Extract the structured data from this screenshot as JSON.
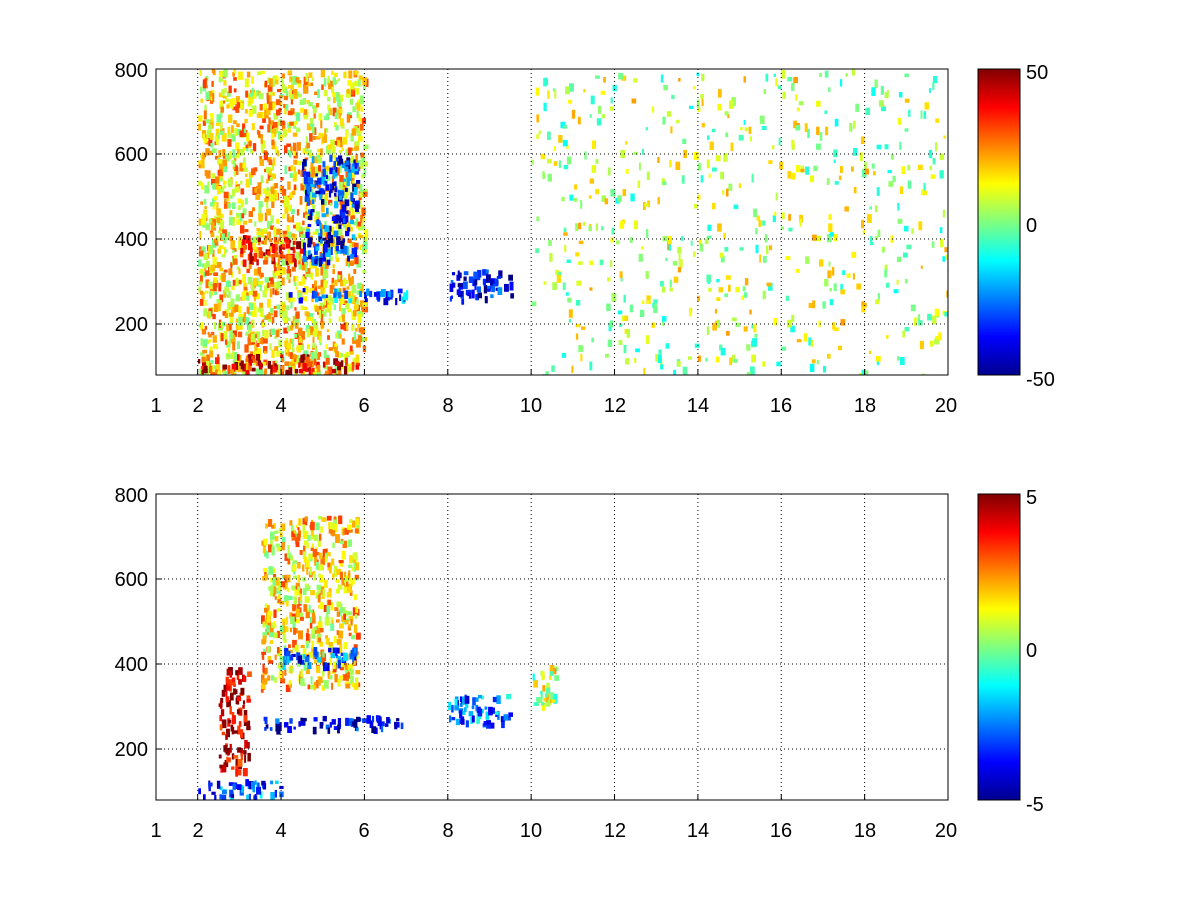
{
  "chart_data": [
    {
      "type": "heatmap",
      "title": "",
      "xlabel": "",
      "ylabel": "",
      "xlim": [
        1,
        20
      ],
      "ylim": [
        80,
        800
      ],
      "x_ticks": [
        1,
        2,
        4,
        6,
        8,
        10,
        12,
        14,
        16,
        18,
        20
      ],
      "y_ticks": [
        200,
        400,
        600,
        800
      ],
      "x_tick_labels": [
        "1",
        "2",
        "4",
        "6",
        "8",
        "10",
        "12",
        "14",
        "16",
        "18",
        "20"
      ],
      "y_tick_labels": [
        "200",
        "400",
        "600",
        "800"
      ],
      "grid": true,
      "colormap": "jet",
      "clim": [
        -50,
        50
      ],
      "colorbar_ticks": [
        -50,
        0,
        50
      ],
      "colorbar_tick_labels": [
        "-50",
        "0",
        "50"
      ],
      "features": [
        {
          "x_range": [
            2,
            6
          ],
          "y_range": [
            80,
            800
          ],
          "typical_value": 15
        },
        {
          "x_range": [
            3,
            4.5
          ],
          "y_range": [
            350,
            420
          ],
          "typical_value": 35
        },
        {
          "x_range": [
            2,
            5.8
          ],
          "y_range": [
            90,
            130
          ],
          "typical_value": 40
        },
        {
          "x_range": [
            4.5,
            5.8
          ],
          "y_range": [
            350,
            600
          ],
          "typical_value": -35
        },
        {
          "x_range": [
            4,
            7
          ],
          "y_range": [
            260,
            285
          ],
          "typical_value": -30
        },
        {
          "x_range": [
            8,
            9.5
          ],
          "y_range": [
            260,
            330
          ],
          "typical_value": -40
        },
        {
          "x_range": [
            10,
            20
          ],
          "y_range": [
            80,
            800
          ],
          "typical_value": 5
        }
      ]
    },
    {
      "type": "heatmap",
      "title": "",
      "xlabel": "",
      "ylabel": "",
      "xlim": [
        1,
        20
      ],
      "ylim": [
        80,
        800
      ],
      "x_ticks": [
        1,
        2,
        4,
        6,
        8,
        10,
        12,
        14,
        16,
        18,
        20
      ],
      "y_ticks": [
        200,
        400,
        600,
        800
      ],
      "x_tick_labels": [
        "1",
        "2",
        "4",
        "6",
        "8",
        "10",
        "12",
        "14",
        "16",
        "18",
        "20"
      ],
      "y_tick_labels": [
        "200",
        "400",
        "600",
        "800"
      ],
      "grid": true,
      "colormap": "jet",
      "clim": [
        -5,
        5
      ],
      "colorbar_ticks": [
        -5,
        0,
        5
      ],
      "colorbar_tick_labels": [
        "-5",
        "0",
        "5"
      ],
      "features": [
        {
          "x_range": [
            2.5,
            3.2
          ],
          "y_range": [
            150,
            400
          ],
          "typical_value": 4.5
        },
        {
          "x_range": [
            3.5,
            5.8
          ],
          "y_range": [
            350,
            750
          ],
          "typical_value": 1.5
        },
        {
          "x_range": [
            4,
            5.8
          ],
          "y_range": [
            400,
            440
          ],
          "typical_value": -3
        },
        {
          "x_range": [
            3.5,
            7
          ],
          "y_range": [
            250,
            280
          ],
          "typical_value": -4
        },
        {
          "x_range": [
            8,
            9.5
          ],
          "y_range": [
            260,
            330
          ],
          "typical_value": -2.5
        },
        {
          "x_range": [
            2,
            4
          ],
          "y_range": [
            90,
            130
          ],
          "typical_value": -3
        },
        {
          "x_range": [
            10,
            10.6
          ],
          "y_range": [
            300,
            400
          ],
          "typical_value": 0.5
        }
      ]
    }
  ]
}
